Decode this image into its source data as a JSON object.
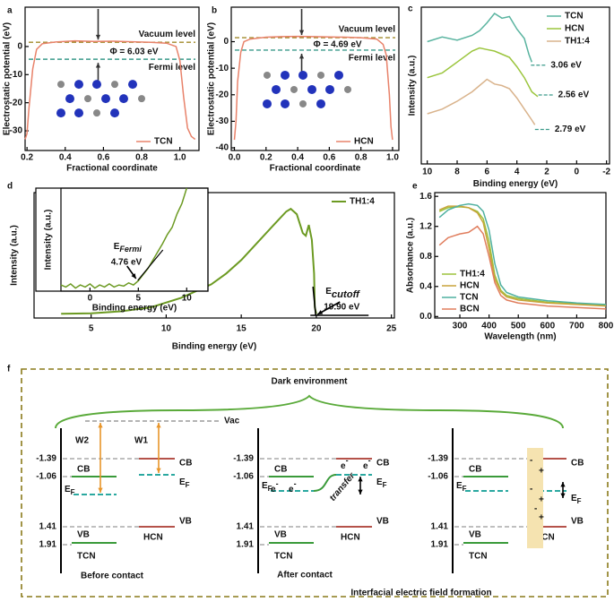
{
  "chart_data": [
    {
      "panel": "a",
      "type": "line",
      "xlabel": "Fractional coordinate",
      "ylabel": "Electrostatic potential (eV)",
      "xlim": [
        0.19,
        1.1
      ],
      "xticks": [
        0.2,
        0.4,
        0.6,
        0.8,
        {
          "value": 1,
          "label": "1.0"
        }
      ],
      "ylim": [
        -37,
        14
      ],
      "yticks": [
        -30,
        -20,
        -10,
        0
      ],
      "legend": "lower right",
      "series": [
        {
          "name": "TCN",
          "color": "#e8826a",
          "x": [
            0.19,
            0.2,
            0.21,
            0.23,
            0.25,
            0.28,
            0.35,
            0.45,
            0.55,
            0.65,
            0.75,
            0.85,
            0.93,
            0.98,
            1.0,
            1.02,
            1.04,
            1.06,
            1.08
          ],
          "values": [
            -33,
            -31,
            -22,
            -8,
            -1,
            1,
            1.6,
            2,
            1.8,
            1.9,
            1.7,
            1.5,
            1.2,
            0,
            -5,
            -18,
            -29,
            -32,
            -33
          ]
        }
      ],
      "levels": [
        {
          "name": "Vacuum level",
          "value": 1.5,
          "color": "#a08a2a"
        },
        {
          "name": "Fermi level",
          "value": -4.53,
          "color": "#3a9a8a"
        }
      ],
      "work_function": "Φ = 6.03 eV"
    },
    {
      "panel": "b",
      "type": "line",
      "xlabel": "Fractional coordinate",
      "ylabel": "Electrostatic potential (eV)",
      "xlim": [
        -0.02,
        1.04
      ],
      "xticks": [
        {
          "value": 0,
          "label": "0.0"
        },
        0.2,
        0.4,
        0.6,
        0.8,
        {
          "value": 1,
          "label": "1.0"
        }
      ],
      "ylim": [
        -41,
        13
      ],
      "yticks": [
        -40,
        -30,
        -20,
        -10,
        0
      ],
      "legend": "lower right",
      "series": [
        {
          "name": "HCN",
          "color": "#e8826a",
          "x": [
            0,
            0.01,
            0.02,
            0.04,
            0.06,
            0.1,
            0.2,
            0.3,
            0.4,
            0.5,
            0.6,
            0.7,
            0.8,
            0.9,
            0.94,
            0.96,
            0.98,
            0.99,
            1.0
          ],
          "values": [
            -37,
            -30,
            -15,
            -4,
            0,
            1,
            1.7,
            1.9,
            2,
            1.9,
            1.8,
            1.7,
            1.5,
            1,
            -1,
            -5,
            -20,
            -32,
            -37
          ]
        }
      ],
      "levels": [
        {
          "name": "Vacuum level",
          "value": 1.5,
          "color": "#a08a2a"
        },
        {
          "name": "Fermi level",
          "value": -3.19,
          "color": "#3a9a8a"
        }
      ],
      "work_function": "Φ = 4.69 eV"
    },
    {
      "panel": "c",
      "type": "line",
      "xlabel": "Binding energy (eV)",
      "ylabel": "Intensity (a.u.)",
      "xlim": [
        10.4,
        -2.2
      ],
      "xticks": [
        10,
        8,
        6,
        4,
        2,
        0,
        -2
      ],
      "ylim": [
        0,
        10
      ],
      "legend": "upper right",
      "series": [
        {
          "name": "TCN",
          "color": "#5ab4a0",
          "x": [
            10,
            9,
            8,
            7,
            6.5,
            6,
            5.5,
            5,
            4.5,
            4,
            3.5,
            3.2,
            3.0
          ],
          "values": [
            7.8,
            8.1,
            7.9,
            8.2,
            8.5,
            9.0,
            9.6,
            9.3,
            9.4,
            8.6,
            8.0,
            7.0,
            6.5
          ]
        },
        {
          "name": "HCN",
          "color": "#9bc53d",
          "x": [
            10,
            9,
            8,
            7,
            6.5,
            6,
            5.5,
            5,
            4.5,
            4,
            3.5,
            3,
            2.6
          ],
          "values": [
            5.5,
            5.8,
            6.5,
            7.2,
            7.4,
            7.3,
            7.2,
            7.0,
            6.8,
            6.2,
            5.5,
            4.6,
            4.3
          ]
        },
        {
          "name": "TH1:4",
          "color": "#d9b38c",
          "x": [
            10,
            9,
            8,
            7,
            6.5,
            6,
            5.5,
            5,
            4.5,
            4,
            3.5,
            3,
            2.8
          ],
          "values": [
            3.2,
            3.5,
            4.0,
            4.6,
            5.0,
            5.4,
            5.1,
            5.0,
            4.8,
            4.2,
            3.5,
            2.8,
            2.5
          ]
        }
      ],
      "annotations": [
        {
          "label": "3.06 eV",
          "x": 3.06,
          "y": 6.3
        },
        {
          "label": "2.56 eV",
          "x": 2.56,
          "y": 4.4
        },
        {
          "label": "2.79 eV",
          "x": 2.79,
          "y": 2.2
        }
      ]
    },
    {
      "panel": "d",
      "type": "line",
      "xlabel": "Binding energy (eV)",
      "ylabel": "Intensity (a.u.)",
      "xlim": [
        1.2,
        25.2
      ],
      "xticks": [
        5,
        10,
        15,
        20,
        25
      ],
      "ylim": [
        -0.03,
        0.9
      ],
      "legend": "upper right",
      "series": [
        {
          "name": "TH1:4",
          "color": "#6c9a22",
          "x": [
            3,
            5,
            7,
            9,
            11,
            13,
            14,
            15,
            16,
            17,
            17.5,
            18,
            18.3,
            18.7,
            19.1,
            19.3,
            19.5,
            19.7,
            19.85,
            19.9,
            20
          ],
          "values": [
            0.002,
            0.005,
            0.02,
            0.05,
            0.12,
            0.22,
            0.3,
            0.4,
            0.52,
            0.64,
            0.7,
            0.76,
            0.78,
            0.74,
            0.6,
            0.58,
            0.66,
            0.55,
            0.3,
            0.05,
            0
          ]
        }
      ],
      "annotations": [
        {
          "label": "E",
          "sub": "cutoff",
          "value_label": "19.90 eV",
          "x": 19.9
        }
      ]
    },
    {
      "panel": "e",
      "type": "line",
      "xlabel": "Wavelength (nm)",
      "ylabel": "Absorbance (a.u.)",
      "xlim": [
        214,
        800
      ],
      "xticks": [
        300,
        400,
        500,
        600,
        700,
        800
      ],
      "ylim": [
        -0.02,
        1.65
      ],
      "yticks": [
        {
          "value": 0,
          "label": "0.0"
        },
        0.4,
        0.8,
        1.2,
        1.6
      ],
      "legend": "lower left",
      "series": [
        {
          "name": "TH1:4",
          "color": "#9cc23c",
          "x": [
            230,
            260,
            300,
            330,
            360,
            380,
            400,
            420,
            440,
            460,
            500,
            600,
            700,
            800
          ],
          "values": [
            1.4,
            1.45,
            1.46,
            1.45,
            1.4,
            1.3,
            1.0,
            0.55,
            0.35,
            0.28,
            0.24,
            0.19,
            0.17,
            0.15
          ]
        },
        {
          "name": "HCN",
          "color": "#c9a33a",
          "x": [
            230,
            260,
            300,
            330,
            360,
            380,
            400,
            420,
            440,
            460,
            500,
            600,
            700,
            800
          ],
          "values": [
            1.42,
            1.47,
            1.47,
            1.45,
            1.38,
            1.25,
            0.9,
            0.5,
            0.33,
            0.26,
            0.22,
            0.18,
            0.16,
            0.14
          ]
        },
        {
          "name": "TCN",
          "color": "#4fb0a0",
          "x": [
            230,
            260,
            300,
            330,
            360,
            380,
            400,
            420,
            440,
            460,
            500,
            600,
            700,
            800
          ],
          "values": [
            1.32,
            1.42,
            1.48,
            1.5,
            1.48,
            1.4,
            1.15,
            0.7,
            0.42,
            0.32,
            0.26,
            0.21,
            0.18,
            0.16
          ]
        },
        {
          "name": "BCN",
          "color": "#e07d5d",
          "x": [
            230,
            260,
            300,
            330,
            360,
            380,
            400,
            420,
            440,
            460,
            500,
            600,
            700,
            800
          ],
          "values": [
            0.95,
            1.05,
            1.1,
            1.12,
            1.2,
            1.1,
            0.8,
            0.45,
            0.28,
            0.22,
            0.18,
            0.14,
            0.12,
            0.1
          ]
        }
      ]
    },
    {
      "type": "line",
      "xlabel": "Binding energy (eV)",
      "ylabel": "Intensity (a.u.)",
      "xlim": [
        -3,
        12.2
      ],
      "xticks": [
        0,
        5,
        10
      ],
      "ylim": [
        0,
        1
      ],
      "series": [
        {
          "color": "#6c9a22",
          "x": [
            -3,
            -2.5,
            -2,
            -1.5,
            -1,
            -0.5,
            0,
            0.5,
            1,
            1.5,
            2,
            2.5,
            3,
            3.5,
            4,
            4.5,
            5,
            5.5,
            6,
            6.5,
            7,
            7.5,
            8,
            8.5,
            9,
            9.5,
            10
          ],
          "values": [
            0.06,
            0.04,
            0.07,
            0.03,
            0.06,
            0.04,
            0.07,
            0.03,
            0.06,
            0.04,
            0.07,
            0.04,
            0.06,
            0.05,
            0.08,
            0.06,
            0.1,
            0.16,
            0.22,
            0.3,
            0.38,
            0.46,
            0.55,
            0.62,
            0.75,
            0.85,
            1.0
          ]
        }
      ],
      "annotations": [
        {
          "label": "E",
          "sub": "Fermi",
          "value_label": "4.76 eV",
          "x": 4.76
        }
      ]
    }
  ],
  "diagram": {
    "label": "f",
    "title": "Dark environment",
    "vac": "Vac",
    "energies": [
      "-1.39",
      "-1.06",
      "1.41",
      "1.91"
    ],
    "cb": "CB",
    "vb": "VB",
    "ef": "E",
    "ef_sub": "F",
    "materials": [
      "TCN",
      "HCN"
    ],
    "work_functions": [
      "W2",
      "W1"
    ],
    "electron": "e",
    "electron_sup": "-",
    "transfer": "transfer",
    "charges": [
      "+",
      "-"
    ],
    "captions": [
      "Before contact",
      "After contact",
      "Interfacial electric field formation"
    ]
  }
}
